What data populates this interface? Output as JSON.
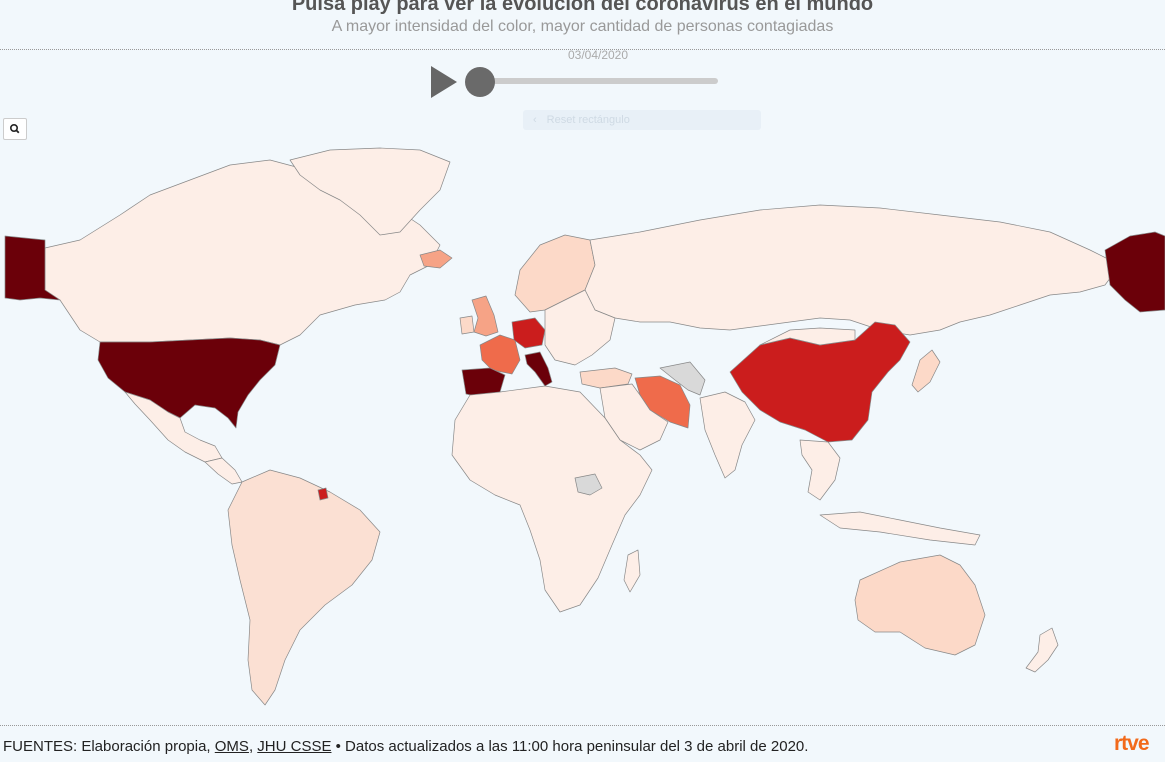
{
  "header": {
    "title": "Pulsa play para ver la evolución del coronavirus en el mundo",
    "subtitle": "A mayor intensidad del color, mayor cantidad de personas contagiadas"
  },
  "timeline": {
    "date": "03/04/2020",
    "progress": 0,
    "play_icon": "play-icon"
  },
  "map_controls": {
    "reset_label": "Reset rectángulo",
    "search_icon": "search-icon"
  },
  "map": {
    "legend_scale": [
      "#fdeee7",
      "#fcd9c8",
      "#f6a386",
      "#ef6b4b",
      "#cb1d1d",
      "#6b0009"
    ],
    "no_data_color": "#d9d9d9",
    "ocean_color": "#f2f8fc",
    "border_color": "#888888"
  },
  "footer": {
    "prefix": "FUENTES: Elaboración propia, ",
    "link1": "OMS",
    "sep": ", ",
    "link2": "JHU CSSE",
    "suffix": " • Datos actualizados a las 11:00 hora peninsular del 3 de abril de 2020.",
    "logo": "rtve"
  }
}
